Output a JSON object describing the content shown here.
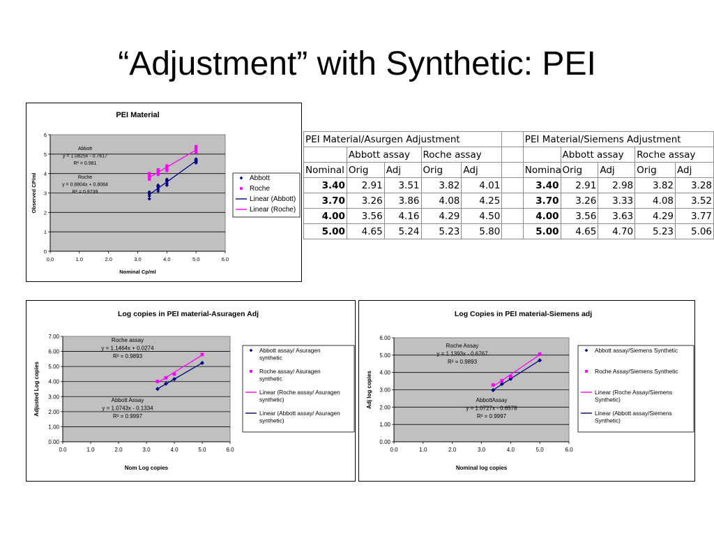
{
  "slide_title": "“Adjustment” with Synthetic: PEI",
  "colors": {
    "abbott": "#000080",
    "roche": "#ff00ff",
    "plot_bg": "#c0c0c0"
  },
  "chart_data": [
    {
      "id": "c1",
      "type": "scatter",
      "title": "PEI Material",
      "xlabel": "Nominal Cp/ml",
      "ylabel": "Observed CP/ml",
      "xlim": [
        0,
        6
      ],
      "ylim": [
        0,
        6
      ],
      "xticks": [
        "0.0",
        "1.0",
        "2.0",
        "3.0",
        "4.0",
        "5.0",
        "6.0"
      ],
      "yticks": [
        "0",
        "1",
        "2",
        "3",
        "4",
        "5",
        "6"
      ],
      "grid": true,
      "legend_position": "right",
      "legend": [
        "Abbott",
        "Roche",
        "Linear (Abbott)",
        "Linear (Roche)"
      ],
      "series": [
        {
          "name": "Abbott",
          "marker": "diamond",
          "color": "#000080",
          "x": [
            3.4,
            3.4,
            3.4,
            3.4,
            3.4,
            3.7,
            3.7,
            3.7,
            3.7,
            3.7,
            4.0,
            4.0,
            4.0,
            4.0,
            4.0,
            5.0,
            5.0,
            5.0,
            5.0,
            5.0
          ],
          "y": [
            2.7,
            2.85,
            2.95,
            3.0,
            3.05,
            3.1,
            3.2,
            3.3,
            3.35,
            3.4,
            3.4,
            3.5,
            3.6,
            3.65,
            3.7,
            4.55,
            4.6,
            4.65,
            4.7,
            4.75
          ],
          "trend": {
            "slope": 1.0825,
            "intercept": -0.7617,
            "x_range": [
              3.4,
              5.0
            ]
          }
        },
        {
          "name": "Roche",
          "marker": "square",
          "color": "#ff00ff",
          "x": [
            3.4,
            3.4,
            3.4,
            3.4,
            3.7,
            3.7,
            3.7,
            3.7,
            4.0,
            4.0,
            4.0,
            4.0,
            5.0,
            5.0,
            5.0,
            5.0
          ],
          "y": [
            3.7,
            3.8,
            3.9,
            4.0,
            3.95,
            4.05,
            4.15,
            4.2,
            4.15,
            4.25,
            4.35,
            4.4,
            5.1,
            5.2,
            5.3,
            5.4
          ],
          "trend": {
            "slope": 0.8804,
            "intercept": 0.8084,
            "x_range": [
              3.4,
              5.0
            ]
          }
        }
      ],
      "annotations": [
        {
          "lines": [
            "Abbott",
            "y = 1.0825x - 0.7617",
            "R² = 0.981"
          ]
        },
        {
          "lines": [
            "Roche",
            "y = 0.8804x + 0.8084",
            "R² = 0.9739"
          ]
        }
      ]
    },
    {
      "id": "c2",
      "type": "scatter",
      "title": "Log copies in PEI material-Asuragen Adj",
      "xlabel": "Nom Log copies",
      "ylabel": "Adjusted Log copies",
      "xlim": [
        0,
        6
      ],
      "ylim": [
        0,
        7
      ],
      "xticks": [
        "0.0",
        "1.0",
        "2.0",
        "3.0",
        "4.0",
        "5.0",
        "6.0"
      ],
      "yticks": [
        "0.00",
        "1.00",
        "2.00",
        "3.00",
        "4.00",
        "5.00",
        "6.00",
        "7.00"
      ],
      "grid": true,
      "legend_position": "right",
      "legend": [
        "Abbott assay/ Asuragen synthetic",
        "Roche assay/ Asuragen synthetic",
        "Linear (Roche assay/ Asuragen synthetic)",
        "Linear (Abbott assay/ Asuragen synthetic)"
      ],
      "series": [
        {
          "name": "Abbott assay/ Asuragen synthetic",
          "marker": "diamond",
          "color": "#000080",
          "x": [
            3.4,
            3.7,
            4.0,
            5.0
          ],
          "y": [
            3.51,
            3.86,
            4.16,
            5.24
          ],
          "trend": {
            "slope": 1.0743,
            "intercept": -0.1334,
            "x_range": [
              3.4,
              5.0
            ]
          }
        },
        {
          "name": "Roche assay/ Asuragen synthetic",
          "marker": "square",
          "color": "#ff00ff",
          "x": [
            3.4,
            3.7,
            4.0,
            5.0
          ],
          "y": [
            4.01,
            4.25,
            4.5,
            5.8
          ],
          "trend": {
            "slope": 1.1464,
            "intercept": 0.0274,
            "x_range": [
              3.4,
              5.0
            ]
          }
        }
      ],
      "annotations": [
        {
          "lines": [
            "Roche assay",
            "y = 1.1464x + 0.0274",
            "R² = 0.9893"
          ]
        },
        {
          "lines": [
            "Abbott Assay",
            "y = 1.0743x - 0.1334",
            "R² = 0.9997"
          ]
        }
      ]
    },
    {
      "id": "c3",
      "type": "scatter",
      "title": "Log Copies in PEI material-Siemens adj",
      "xlabel": "Nominal log copies",
      "ylabel": "Adj log copies",
      "xlim": [
        0,
        6
      ],
      "ylim": [
        0,
        6
      ],
      "xticks": [
        "0.0",
        "1.0",
        "2.0",
        "3.0",
        "4.0",
        "5.0",
        "6.0"
      ],
      "yticks": [
        "0.00",
        "1.00",
        "2.00",
        "3.00",
        "4.00",
        "5.00",
        "6.00"
      ],
      "grid": true,
      "legend_position": "right",
      "legend": [
        "Abbott assay/Siemens Synthetic",
        "Roche Assay/Siemens Synthetic",
        "Linear (Roche Assay/Siemens Synthetic)",
        "Linear (Abbott assay/Siemens Synthetic)"
      ],
      "series": [
        {
          "name": "Abbott assay/Siemens Synthetic",
          "marker": "diamond",
          "color": "#000080",
          "x": [
            3.4,
            3.7,
            4.0,
            5.0
          ],
          "y": [
            2.98,
            3.33,
            3.63,
            4.7
          ],
          "trend": {
            "slope": 1.0727,
            "intercept": -0.6578,
            "x_range": [
              3.4,
              5.0
            ]
          }
        },
        {
          "name": "Roche Assay/Siemens Synthetic",
          "marker": "square",
          "color": "#ff00ff",
          "x": [
            3.4,
            3.7,
            4.0,
            5.0
          ],
          "y": [
            3.28,
            3.52,
            3.77,
            5.06
          ],
          "trend": {
            "slope": 1.1393,
            "intercept": -0.6767,
            "x_range": [
              3.4,
              5.0
            ]
          }
        }
      ],
      "annotations": [
        {
          "lines": [
            "Roche Assay",
            "y = 1.1393x - 0.6767",
            "R² = 0.9893"
          ]
        },
        {
          "lines": [
            "AbbottAssay",
            "y = 1.0727x - 0.6578",
            "R² = 0.9997"
          ]
        }
      ]
    }
  ],
  "tables": {
    "asuragen": {
      "title": "PEI Material/Asurgen Adjustment",
      "group_headers": [
        "Abbott assay",
        "Roche assay"
      ],
      "columns": [
        "Nominal",
        "Orig",
        "Adj",
        "Orig",
        "Adj"
      ],
      "rows": [
        [
          "3.40",
          "2.91",
          "3.51",
          "3.82",
          "4.01"
        ],
        [
          "3.70",
          "3.26",
          "3.86",
          "4.08",
          "4.25"
        ],
        [
          "4.00",
          "3.56",
          "4.16",
          "4.29",
          "4.50"
        ],
        [
          "5.00",
          "4.65",
          "5.24",
          "5.23",
          "5.80"
        ]
      ]
    },
    "siemens": {
      "title": "PEI Material/Siemens Adjustment",
      "group_headers": [
        "Abbott assay",
        "Roche assay"
      ],
      "columns": [
        "Nominal",
        "Orig",
        "Adj",
        "Orig",
        "Adj"
      ],
      "rows": [
        [
          "3.40",
          "2.91",
          "2.98",
          "3.82",
          "3.28"
        ],
        [
          "3.70",
          "3.26",
          "3.33",
          "4.08",
          "3.52"
        ],
        [
          "4.00",
          "3.56",
          "3.63",
          "4.29",
          "3.77"
        ],
        [
          "5.00",
          "4.65",
          "4.70",
          "5.23",
          "5.06"
        ]
      ]
    }
  }
}
